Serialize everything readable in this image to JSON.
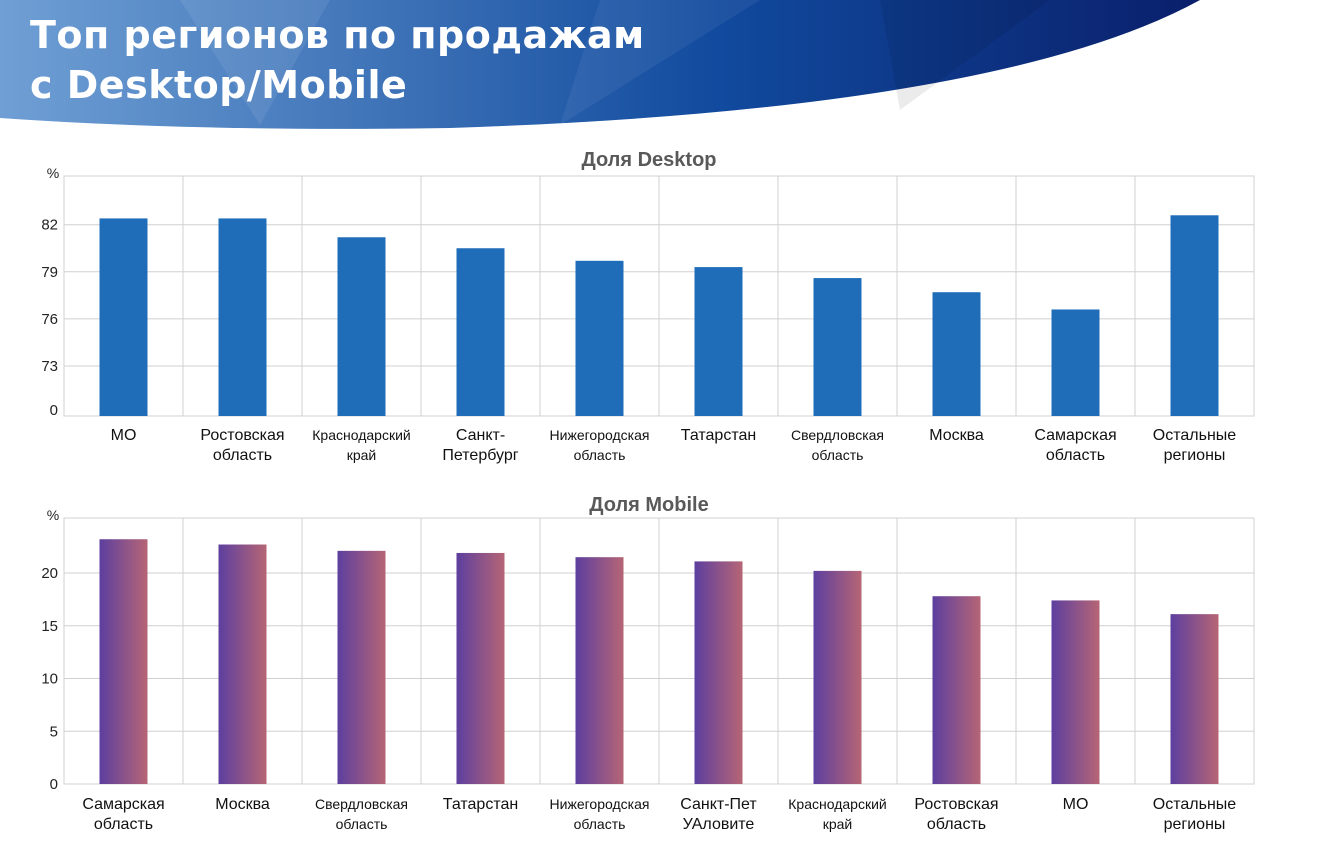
{
  "header": {
    "title_line1": "Топ регионов по продажам",
    "title_line2": "с Desktop/Mobile"
  },
  "colors": {
    "desktop_bar": "#1f6cb9",
    "mobile_grad_start": "#5d3f9f",
    "mobile_grad_end": "#b66575",
    "grid": "#d0d0d0"
  },
  "chart_data": [
    {
      "type": "bar",
      "title": "Доля Desktop",
      "ylabel": "%",
      "ylim": [
        0,
        85
      ],
      "axis_break": "0 then 73–85",
      "yticks": [
        0,
        73,
        76,
        79,
        82
      ],
      "categories": [
        [
          "МО"
        ],
        [
          "Ростовская",
          "область"
        ],
        [
          "Краснодарский",
          "край"
        ],
        [
          "Санкт-",
          "Петербург"
        ],
        [
          "Нижегородская",
          "область"
        ],
        [
          "Татарстан"
        ],
        [
          "Свердловская",
          "область"
        ],
        [
          "Москва"
        ],
        [
          "Самарская",
          "область"
        ],
        [
          "Остальные",
          "регионы"
        ]
      ],
      "values": [
        82.4,
        82.4,
        81.2,
        80.5,
        79.7,
        79.3,
        78.6,
        77.7,
        76.6,
        82.6
      ]
    },
    {
      "type": "bar",
      "title": "Доля Mobile",
      "ylabel": "%",
      "ylim": [
        0,
        25
      ],
      "yticks": [
        0,
        5,
        10,
        15,
        20
      ],
      "categories": [
        [
          "Самарская",
          "область"
        ],
        [
          "Москва"
        ],
        [
          "Свердловская",
          "область"
        ],
        [
          "Татарстан"
        ],
        [
          "Нижегородская",
          "область"
        ],
        [
          "Санкт-Пет",
          "УАловите"
        ],
        [
          "Краснодарский",
          "край"
        ],
        [
          "Ростовская",
          "область"
        ],
        [
          "МО"
        ],
        [
          "Остальные",
          "регионы"
        ]
      ],
      "values": [
        23.2,
        22.7,
        22.1,
        21.9,
        21.5,
        21.1,
        20.2,
        17.8,
        17.4,
        16.1
      ]
    }
  ]
}
